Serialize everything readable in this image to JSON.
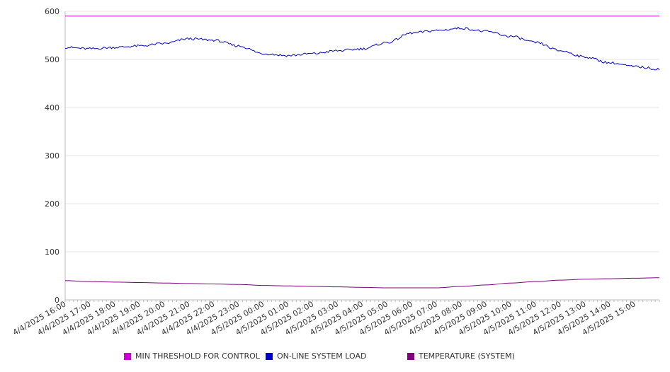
{
  "chart_data": {
    "type": "line",
    "title": "",
    "xlabel": "",
    "ylabel": "",
    "ylim": [
      0,
      600
    ],
    "yticks": [
      "0",
      "100",
      "200",
      "300",
      "400",
      "500",
      "600"
    ],
    "x_tick_labels": [
      "4/4/2025 16:00",
      "4/4/2025 17:00",
      "4/4/2025 18:00",
      "4/4/2025 19:00",
      "4/4/2025 20:00",
      "4/4/2025 21:00",
      "4/4/2025 22:00",
      "4/4/2025 23:00",
      "4/5/2025 00:00",
      "4/5/2025 01:00",
      "4/5/2025 02:00",
      "4/5/2025 03:00",
      "4/5/2025 04:00",
      "4/5/2025 05:00",
      "4/5/2025 06:00",
      "4/5/2025 07:00",
      "4/5/2025 08:00",
      "4/5/2025 09:00",
      "4/5/2025 10:00",
      "4/5/2025 11:00",
      "4/5/2025 12:00",
      "4/5/2025 13:00",
      "4/5/2025 14:00",
      "4/5/2025 15:00"
    ],
    "grid": true,
    "legend_position": "bottom",
    "series": [
      {
        "name": "MIN THRESHOLD FOR CONTROL",
        "color": "#cc00cc",
        "values": [
          590,
          590,
          590,
          590,
          590,
          590,
          590,
          590,
          590,
          590,
          590,
          590,
          590,
          590,
          590,
          590,
          590,
          590,
          590,
          590,
          590,
          590,
          590,
          590,
          590
        ]
      },
      {
        "name": "ON-LINE SYSTEM LOAD",
        "color": "#0000cc",
        "values": [
          525,
          522,
          525,
          528,
          533,
          543,
          540,
          528,
          512,
          508,
          512,
          518,
          522,
          535,
          555,
          560,
          565,
          558,
          548,
          535,
          518,
          505,
          493,
          485,
          480
        ]
      },
      {
        "name": "TEMPERATURE (SYSTEM)",
        "color": "#800080",
        "values": [
          40,
          38,
          37,
          36,
          35,
          34,
          33,
          32,
          30,
          29,
          28,
          27,
          26,
          25,
          25,
          25,
          28,
          31,
          35,
          38,
          41,
          43,
          44,
          45,
          46
        ]
      }
    ]
  }
}
